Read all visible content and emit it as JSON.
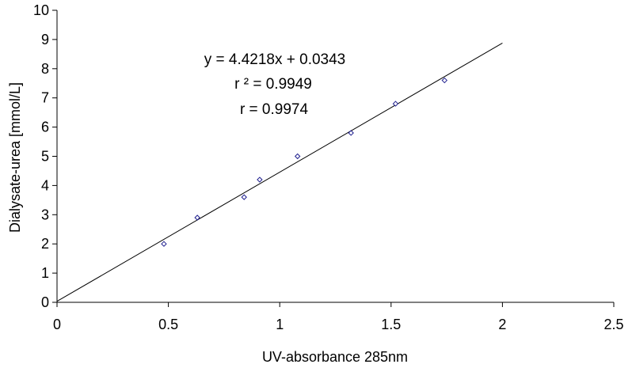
{
  "chart_data": {
    "type": "scatter",
    "title": "",
    "xlabel": "UV-absorbance 285nm",
    "ylabel": "Dialysate-urea [mmol/L]",
    "xlim": [
      0,
      2.5
    ],
    "ylim": [
      0,
      10
    ],
    "x_ticks": [
      "0",
      "0.5",
      "1",
      "1.5",
      "2",
      "2.5"
    ],
    "y_ticks": [
      "0",
      "1",
      "2",
      "3",
      "4",
      "5",
      "6",
      "7",
      "8",
      "9",
      "10"
    ],
    "grid": false,
    "legend": "none",
    "series": [
      {
        "x": [
          0.48,
          0.63,
          0.84,
          0.91,
          1.08,
          1.32,
          1.52,
          1.74
        ],
        "y": [
          2.0,
          2.9,
          3.6,
          4.2,
          5.0,
          5.8,
          6.8,
          7.6
        ],
        "marker": "diamond",
        "color": "#1f1f8f"
      }
    ],
    "trendline": {
      "type": "linear",
      "slope": 4.4218,
      "intercept": 0.0343,
      "x_range": [
        0,
        2
      ],
      "color": "#000000"
    },
    "annotations": [
      "y = 4.4218x + 0.0343",
      "r ² = 0.9949",
      "r = 0.9974"
    ]
  }
}
